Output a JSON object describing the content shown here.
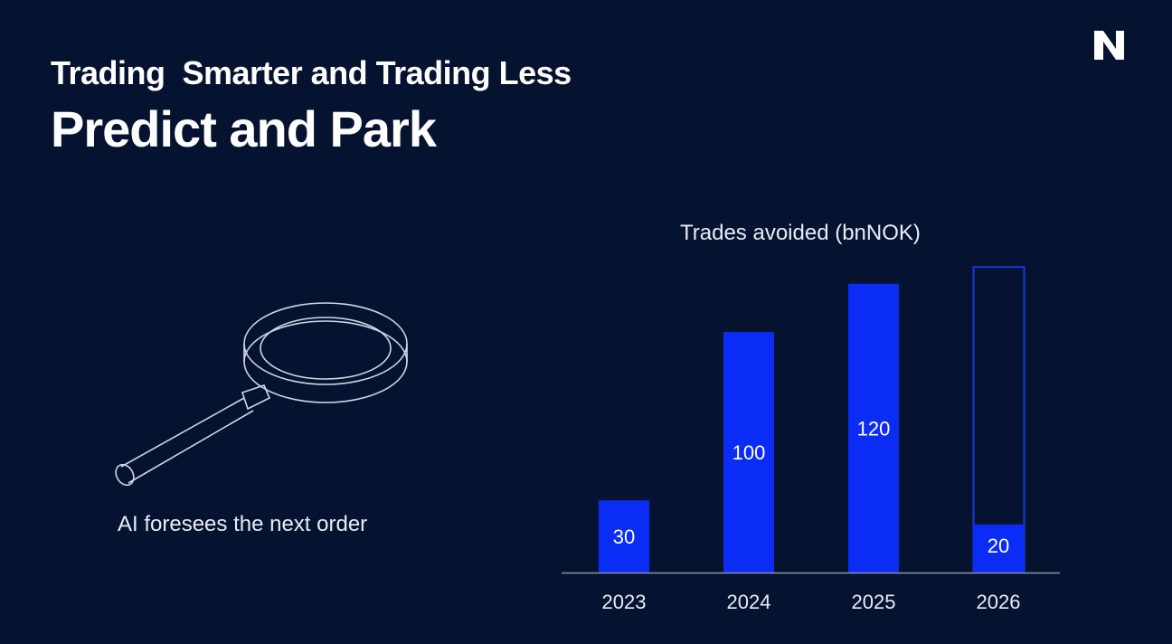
{
  "slide": {
    "subtitle": "Trading  Smarter and Trading Less",
    "title": "Predict and Park",
    "caption": "AI foresees the next order",
    "logo_text": "N",
    "icon": "magnifying-glass-icon"
  },
  "colors": {
    "background": "#061330",
    "bar": "#0a2cf5",
    "outline": "#1638e0",
    "axis": "#8a93a6"
  },
  "chart_data": {
    "type": "bar",
    "title": "Trades avoided (bnNOK)",
    "categories": [
      "2023",
      "2024",
      "2025",
      "2026"
    ],
    "values": [
      30,
      100,
      120,
      20
    ],
    "data_labels": [
      "30",
      "100",
      "120",
      "20"
    ],
    "outline_target": {
      "category": "2026",
      "value": 127
    },
    "xlabel": "",
    "ylabel": "",
    "ylim": [
      0,
      130
    ],
    "grid": false,
    "legend": "none"
  }
}
